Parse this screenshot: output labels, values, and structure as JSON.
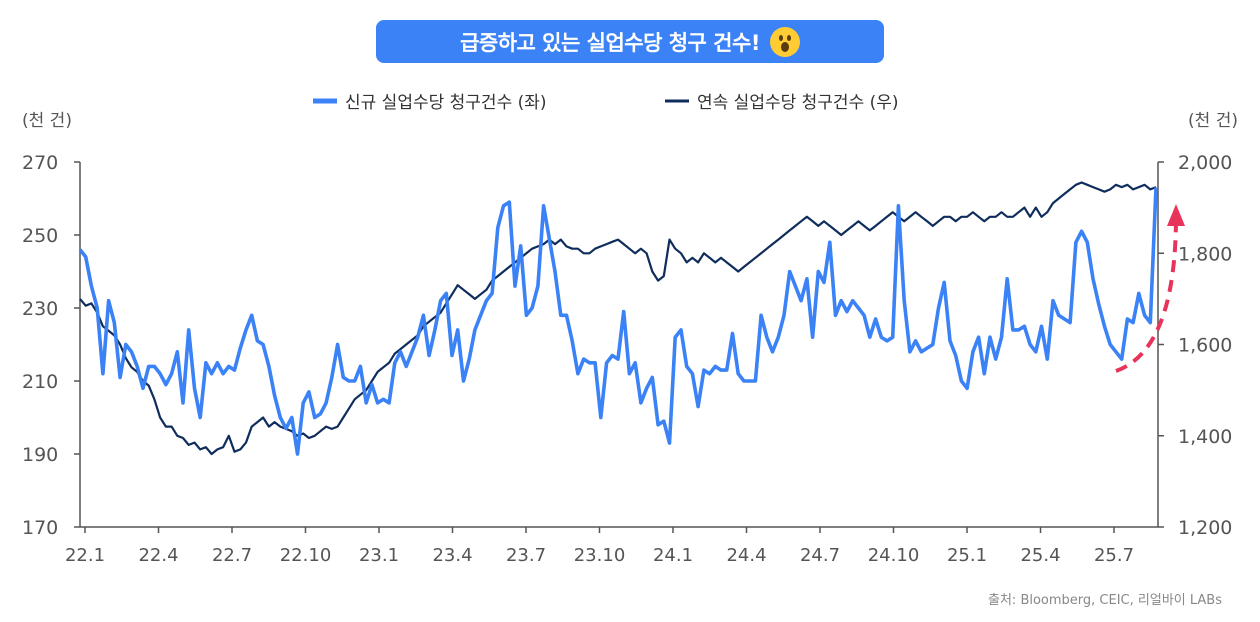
{
  "title": "급증하고 있는 실업수당 청구 건수!",
  "emoji_icon": "astonished-face-emoji",
  "source": "출처: Bloomberg, CEIC, 리얼바이 LABs",
  "colors": {
    "new_claims": "#3a82f6",
    "continuing_claims": "#0f2d5c",
    "arrow": "#e8345a",
    "title_bg": "#3a82f6"
  },
  "chart_data": {
    "type": "line",
    "legend_position": "top-center",
    "grid": false,
    "left_axis": {
      "unit": "(천 건)",
      "ylim": [
        170,
        270
      ],
      "ticks": [
        "270",
        "250",
        "230",
        "210",
        "190",
        "170"
      ]
    },
    "right_axis": {
      "unit": "(천 건)",
      "ylim": [
        1200,
        2000
      ],
      "ticks": [
        "2,000",
        "1,800",
        "1,600",
        "1,400",
        "1,200"
      ]
    },
    "x_tick_labels": [
      "22.1",
      "22.4",
      "22.7",
      "22.10",
      "23.1",
      "23.4",
      "23.7",
      "23.10",
      "24.1",
      "24.4",
      "24.7",
      "24.10",
      "25.1",
      "25.4",
      "25.7"
    ],
    "x_start": "22.1",
    "x_step_months": 0.25,
    "series": [
      {
        "name": "신규 실업수당 청구건수 (좌)",
        "axis": "left",
        "values": [
          246,
          244,
          236,
          230,
          212,
          232,
          226,
          211,
          220,
          218,
          214,
          208,
          214,
          214,
          212,
          209,
          212,
          218,
          204,
          224,
          208,
          200,
          215,
          212,
          215,
          212,
          214,
          213,
          219,
          224,
          228,
          221,
          220,
          214,
          206,
          200,
          197,
          200,
          190,
          204,
          207,
          200,
          201,
          204,
          211,
          220,
          211,
          210,
          210,
          214,
          204,
          209,
          204,
          205,
          204,
          215,
          218,
          214,
          218,
          222,
          228,
          217,
          224,
          232,
          234,
          217,
          224,
          210,
          216,
          224,
          228,
          232,
          234,
          252,
          258,
          259,
          236,
          247,
          228,
          230,
          236,
          258,
          249,
          240,
          228,
          228,
          221,
          212,
          216,
          215,
          215,
          200,
          215,
          217,
          216,
          229,
          212,
          215,
          204,
          208,
          211,
          198,
          199,
          193,
          222,
          224,
          214,
          212,
          203,
          213,
          212,
          214,
          213,
          213,
          223,
          212,
          210,
          210,
          210,
          228,
          222,
          218,
          222,
          228,
          240,
          236,
          232,
          238,
          222,
          240,
          237,
          248,
          228,
          232,
          229,
          232,
          230,
          228,
          222,
          227,
          222,
          221,
          222,
          258,
          232,
          218,
          221,
          218,
          219,
          220,
          230,
          237,
          221,
          217,
          210,
          208,
          218,
          222,
          212,
          222,
          216,
          222,
          238,
          224,
          224,
          225,
          220,
          218,
          225,
          216,
          232,
          228,
          227,
          226,
          248,
          251,
          248,
          238,
          231,
          225,
          220,
          218,
          216,
          227,
          226,
          234,
          228,
          226,
          263
        ]
      },
      {
        "name": "연속 실업수당 청구건수 (우)",
        "axis": "right",
        "values": [
          1700,
          1685,
          1690,
          1670,
          1640,
          1630,
          1620,
          1600,
          1570,
          1550,
          1540,
          1520,
          1510,
          1480,
          1440,
          1420,
          1420,
          1400,
          1395,
          1380,
          1385,
          1370,
          1375,
          1360,
          1370,
          1375,
          1400,
          1365,
          1370,
          1385,
          1420,
          1430,
          1440,
          1420,
          1430,
          1420,
          1415,
          1410,
          1400,
          1405,
          1395,
          1400,
          1410,
          1420,
          1415,
          1420,
          1440,
          1460,
          1480,
          1490,
          1500,
          1520,
          1540,
          1550,
          1560,
          1580,
          1590,
          1600,
          1610,
          1620,
          1640,
          1650,
          1660,
          1670,
          1690,
          1710,
          1730,
          1720,
          1710,
          1700,
          1710,
          1720,
          1740,
          1750,
          1760,
          1770,
          1780,
          1790,
          1800,
          1810,
          1815,
          1820,
          1830,
          1820,
          1830,
          1815,
          1810,
          1810,
          1800,
          1800,
          1810,
          1815,
          1820,
          1825,
          1830,
          1820,
          1810,
          1800,
          1810,
          1800,
          1760,
          1740,
          1750,
          1830,
          1810,
          1800,
          1780,
          1790,
          1780,
          1800,
          1790,
          1780,
          1790,
          1780,
          1770,
          1760,
          1770,
          1780,
          1790,
          1800,
          1810,
          1820,
          1830,
          1840,
          1850,
          1860,
          1870,
          1880,
          1870,
          1860,
          1870,
          1860,
          1850,
          1840,
          1850,
          1860,
          1870,
          1860,
          1850,
          1860,
          1870,
          1880,
          1890,
          1880,
          1870,
          1880,
          1890,
          1880,
          1870,
          1860,
          1870,
          1880,
          1880,
          1870,
          1880,
          1880,
          1890,
          1880,
          1870,
          1880,
          1880,
          1890,
          1880,
          1880,
          1890,
          1900,
          1880,
          1900,
          1880,
          1890,
          1910,
          1920,
          1930,
          1940,
          1950,
          1955,
          1950,
          1945,
          1940,
          1935,
          1940,
          1950,
          1945,
          1950,
          1940,
          1945,
          1950,
          1940,
          1945
        ]
      }
    ]
  }
}
